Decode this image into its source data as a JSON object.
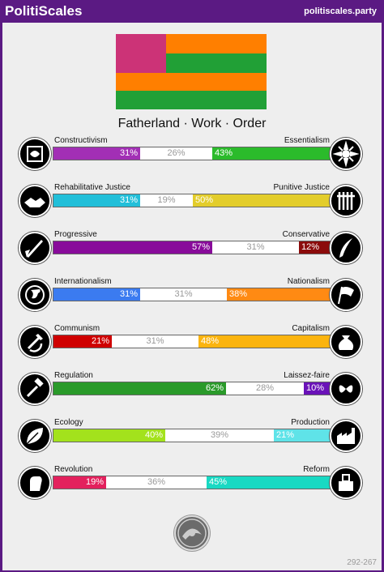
{
  "header": {
    "title": "PolitiScales",
    "site": "politiscales.party"
  },
  "motto": "Fatherland · Work · Order",
  "flag_colors": {
    "magenta": "#cc3377",
    "orange": "#ff7f00",
    "green": "#21a036"
  },
  "axes": [
    {
      "left_label": "Constructivism",
      "right_label": "Essentialism",
      "left": "31%",
      "center": "26%",
      "right": "43%",
      "left_pct": 31,
      "center_pct": 26,
      "right_pct": 43,
      "left_color": "#a22fb5",
      "right_color": "#2bbb2b",
      "left_icon": "brain-cage-icon",
      "right_icon": "sunflower-icon"
    },
    {
      "left_label": "Rehabilitative Justice",
      "right_label": "Punitive Justice",
      "left": "31%",
      "center": "19%",
      "right": "50%",
      "left_pct": 31,
      "center_pct": 19,
      "right_pct": 50,
      "left_color": "#22bfd9",
      "right_color": "#e3cd2b",
      "left_icon": "handshake-icon",
      "right_icon": "prison-bars-icon"
    },
    {
      "left_label": "Progressive",
      "right_label": "Conservative",
      "left": "57%",
      "center": "31%",
      "right": "12%",
      "left_pct": 57,
      "center_pct": 31,
      "right_pct": 12,
      "left_color": "#880b9a",
      "right_color": "#8b0b0b",
      "left_icon": "rocket-icon",
      "right_icon": "quill-icon"
    },
    {
      "left_label": "Internationalism",
      "right_label": "Nationalism",
      "left": "31%",
      "center": "31%",
      "right": "38%",
      "left_pct": 31,
      "center_pct": 31,
      "right_pct": 38,
      "left_color": "#3b7bf0",
      "right_color": "#ff8a13",
      "left_icon": "globe-icon",
      "right_icon": "flag-icon"
    },
    {
      "left_label": "Communism",
      "right_label": "Capitalism",
      "left": "21%",
      "center": "31%",
      "right": "48%",
      "left_pct": 21,
      "center_pct": 31,
      "right_pct": 48,
      "left_color": "#cf0000",
      "right_color": "#fbb40f",
      "left_icon": "hammer-sickle-icon",
      "right_icon": "money-bag-icon"
    },
    {
      "left_label": "Regulation",
      "right_label": "Laissez-faire",
      "left": "62%",
      "center": "28%",
      "right": "10%",
      "left_pct": 62,
      "center_pct": 28,
      "right_pct": 10,
      "left_color": "#2a9a2a",
      "right_color": "#6a12b8",
      "left_icon": "gavel-icon",
      "right_icon": "butterflies-icon"
    },
    {
      "left_label": "Ecology",
      "right_label": "Production",
      "left": "40%",
      "center": "39%",
      "right": "21%",
      "left_pct": 40,
      "center_pct": 39,
      "right_pct": 21,
      "left_color": "#a3e21c",
      "right_color": "#5fe3e8",
      "left_icon": "leaf-icon",
      "right_icon": "factory-icon"
    },
    {
      "left_label": "Revolution",
      "right_label": "Reform",
      "left": "19%",
      "center": "36%",
      "right": "45%",
      "left_pct": 19,
      "center_pct": 36,
      "right_pct": 45,
      "left_color": "#e3215d",
      "right_color": "#19d9c3",
      "left_icon": "fist-icon",
      "right_icon": "ballot-icon"
    }
  ],
  "footer": {
    "badge_icon": "bonus-badge-icon",
    "version": "292-267"
  }
}
